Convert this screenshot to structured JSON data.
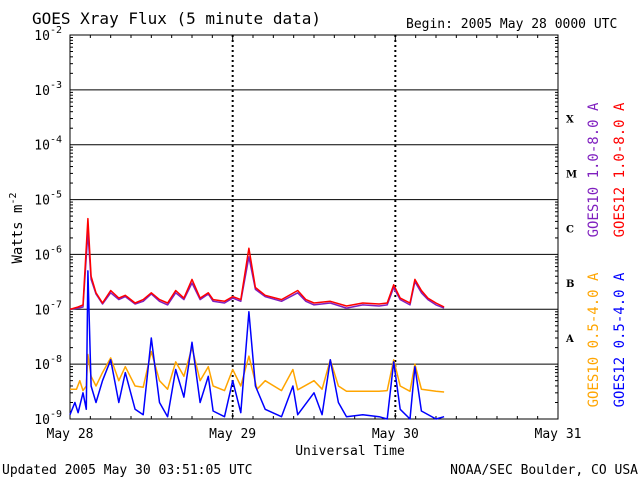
{
  "chart_data": {
    "type": "line",
    "title": "GOES Xray Flux (5 minute data)",
    "begin_label": "Begin:  2005 May 28 0000 UTC",
    "xlabel": "Universal Time",
    "ylabel_base": "Watts m",
    "ylabel_exp": "-2",
    "y_scale": "log",
    "ylim": [
      1e-09,
      0.01
    ],
    "y_ticks": [
      {
        "base": "10",
        "exp": "-2",
        "value": 0.01
      },
      {
        "base": "10",
        "exp": "-3",
        "value": 0.001
      },
      {
        "base": "10",
        "exp": "-4",
        "value": 0.0001
      },
      {
        "base": "10",
        "exp": "-5",
        "value": 1e-05
      },
      {
        "base": "10",
        "exp": "-6",
        "value": 1e-06
      },
      {
        "base": "10",
        "exp": "-7",
        "value": 1e-07
      },
      {
        "base": "10",
        "exp": "-8",
        "value": 1e-08
      },
      {
        "base": "10",
        "exp": "-9",
        "value": 1e-09
      }
    ],
    "xlim_days": [
      0,
      3
    ],
    "x_ticks": [
      {
        "label": "May 28",
        "day": 0
      },
      {
        "label": "May 29",
        "day": 1
      },
      {
        "label": "May 30",
        "day": 2
      },
      {
        "label": "May 31",
        "day": 3
      }
    ],
    "flare_classes": [
      {
        "label": "X",
        "value": 0.0003
      },
      {
        "label": "M",
        "value": 3e-05
      },
      {
        "label": "C",
        "value": 3e-06
      },
      {
        "label": "B",
        "value": 3e-07
      },
      {
        "label": "A",
        "value": 3e-08
      }
    ],
    "grid": "horizontal decade lines, dashed vertical day lines",
    "series": [
      {
        "name": "GOES12 1.0-8.0 A",
        "color": "#ff0000",
        "points": [
          [
            0,
            1e-07
          ],
          [
            0.05,
            1.1e-07
          ],
          [
            0.08,
            1.2e-07
          ],
          [
            0.11,
            4.5e-06
          ],
          [
            0.13,
            4e-07
          ],
          [
            0.16,
            2e-07
          ],
          [
            0.2,
            1.3e-07
          ],
          [
            0.25,
            2.2e-07
          ],
          [
            0.3,
            1.6e-07
          ],
          [
            0.34,
            1.8e-07
          ],
          [
            0.4,
            1.3e-07
          ],
          [
            0.45,
            1.5e-07
          ],
          [
            0.5,
            2e-07
          ],
          [
            0.55,
            1.5e-07
          ],
          [
            0.6,
            1.3e-07
          ],
          [
            0.65,
            2.2e-07
          ],
          [
            0.7,
            1.6e-07
          ],
          [
            0.75,
            3.5e-07
          ],
          [
            0.8,
            1.6e-07
          ],
          [
            0.85,
            2e-07
          ],
          [
            0.88,
            1.5e-07
          ],
          [
            0.95,
            1.4e-07
          ],
          [
            1.0,
            1.7e-07
          ],
          [
            1.05,
            1.5e-07
          ],
          [
            1.1,
            1.3e-06
          ],
          [
            1.14,
            2.5e-07
          ],
          [
            1.2,
            1.8e-07
          ],
          [
            1.3,
            1.5e-07
          ],
          [
            1.4,
            2.2e-07
          ],
          [
            1.45,
            1.5e-07
          ],
          [
            1.5,
            1.3e-07
          ],
          [
            1.6,
            1.4e-07
          ],
          [
            1.7,
            1.15e-07
          ],
          [
            1.8,
            1.3e-07
          ],
          [
            1.9,
            1.25e-07
          ],
          [
            1.95,
            1.3e-07
          ],
          [
            1.99,
            2.8e-07
          ],
          [
            2.03,
            1.6e-07
          ],
          [
            2.09,
            1.3e-07
          ],
          [
            2.12,
            3.5e-07
          ],
          [
            2.16,
            2.2e-07
          ],
          [
            2.2,
            1.6e-07
          ],
          [
            2.25,
            1.3e-07
          ],
          [
            2.3,
            1.1e-07
          ]
        ]
      },
      {
        "name": "GOES10 1.0-8.0 A",
        "color": "#7f1fbf",
        "points": [
          [
            0,
            1e-07
          ],
          [
            0.05,
            1.05e-07
          ],
          [
            0.08,
            1.1e-07
          ],
          [
            0.11,
            2.5e-06
          ],
          [
            0.13,
            3.5e-07
          ],
          [
            0.16,
            1.9e-07
          ],
          [
            0.2,
            1.25e-07
          ],
          [
            0.25,
            2e-07
          ],
          [
            0.3,
            1.5e-07
          ],
          [
            0.34,
            1.7e-07
          ],
          [
            0.4,
            1.25e-07
          ],
          [
            0.45,
            1.4e-07
          ],
          [
            0.5,
            1.9e-07
          ],
          [
            0.55,
            1.4e-07
          ],
          [
            0.6,
            1.2e-07
          ],
          [
            0.65,
            2e-07
          ],
          [
            0.7,
            1.5e-07
          ],
          [
            0.75,
            3e-07
          ],
          [
            0.8,
            1.5e-07
          ],
          [
            0.85,
            1.9e-07
          ],
          [
            0.88,
            1.4e-07
          ],
          [
            0.95,
            1.3e-07
          ],
          [
            1.0,
            1.6e-07
          ],
          [
            1.05,
            1.4e-07
          ],
          [
            1.1,
            9e-07
          ],
          [
            1.14,
            2.3e-07
          ],
          [
            1.2,
            1.7e-07
          ],
          [
            1.3,
            1.4e-07
          ],
          [
            1.4,
            2e-07
          ],
          [
            1.45,
            1.4e-07
          ],
          [
            1.5,
            1.2e-07
          ],
          [
            1.6,
            1.3e-07
          ],
          [
            1.7,
            1.05e-07
          ],
          [
            1.8,
            1.2e-07
          ],
          [
            1.9,
            1.15e-07
          ],
          [
            1.95,
            1.2e-07
          ],
          [
            1.99,
            2.5e-07
          ],
          [
            2.03,
            1.5e-07
          ],
          [
            2.09,
            1.2e-07
          ],
          [
            2.12,
            3.2e-07
          ],
          [
            2.16,
            2e-07
          ],
          [
            2.2,
            1.5e-07
          ],
          [
            2.25,
            1.2e-07
          ],
          [
            2.3,
            1.05e-07
          ]
        ]
      },
      {
        "name": "GOES10 0.5-4.0 A",
        "color": "#ffa500",
        "points": [
          [
            0,
            3.5e-09
          ],
          [
            0.04,
            3.5e-09
          ],
          [
            0.06,
            5e-09
          ],
          [
            0.08,
            3.3e-09
          ],
          [
            0.1,
            4e-09
          ],
          [
            0.11,
            1.5e-08
          ],
          [
            0.13,
            6e-09
          ],
          [
            0.16,
            4e-09
          ],
          [
            0.2,
            7e-09
          ],
          [
            0.25,
            1.3e-08
          ],
          [
            0.3,
            5e-09
          ],
          [
            0.34,
            9e-09
          ],
          [
            0.4,
            4e-09
          ],
          [
            0.45,
            3.8e-09
          ],
          [
            0.5,
            1.7e-08
          ],
          [
            0.55,
            5e-09
          ],
          [
            0.6,
            3.5e-09
          ],
          [
            0.65,
            1.1e-08
          ],
          [
            0.7,
            6e-09
          ],
          [
            0.75,
            2e-08
          ],
          [
            0.8,
            5e-09
          ],
          [
            0.85,
            9e-09
          ],
          [
            0.88,
            4e-09
          ],
          [
            0.95,
            3.3e-09
          ],
          [
            1.0,
            8e-09
          ],
          [
            1.05,
            4e-09
          ],
          [
            1.1,
            1.4e-08
          ],
          [
            1.15,
            3.5e-09
          ],
          [
            1.2,
            5e-09
          ],
          [
            1.3,
            3.3e-09
          ],
          [
            1.37,
            8e-09
          ],
          [
            1.4,
            3.4e-09
          ],
          [
            1.5,
            5e-09
          ],
          [
            1.55,
            3.5e-09
          ],
          [
            1.6,
            1.2e-08
          ],
          [
            1.65,
            4e-09
          ],
          [
            1.7,
            3.2e-09
          ],
          [
            1.8,
            3.2e-09
          ],
          [
            1.9,
            3.2e-09
          ],
          [
            1.95,
            3.3e-09
          ],
          [
            1.99,
            1.2e-08
          ],
          [
            2.03,
            4e-09
          ],
          [
            2.09,
            3.2e-09
          ],
          [
            2.12,
            1e-08
          ],
          [
            2.16,
            3.5e-09
          ],
          [
            2.25,
            3.2e-09
          ],
          [
            2.3,
            3.1e-09
          ]
        ]
      },
      {
        "name": "GOES12 0.5-4.0 A",
        "color": "#0000ff",
        "points": [
          [
            0,
            1.2e-09
          ],
          [
            0.03,
            2e-09
          ],
          [
            0.05,
            1.3e-09
          ],
          [
            0.08,
            3e-09
          ],
          [
            0.1,
            1.5e-09
          ],
          [
            0.11,
            5e-07
          ],
          [
            0.13,
            4e-09
          ],
          [
            0.16,
            2e-09
          ],
          [
            0.2,
            5e-09
          ],
          [
            0.25,
            1.2e-08
          ],
          [
            0.3,
            2e-09
          ],
          [
            0.34,
            7e-09
          ],
          [
            0.4,
            1.5e-09
          ],
          [
            0.45,
            1.2e-09
          ],
          [
            0.5,
            3e-08
          ],
          [
            0.55,
            2e-09
          ],
          [
            0.6,
            1.1e-09
          ],
          [
            0.65,
            8e-09
          ],
          [
            0.7,
            2.5e-09
          ],
          [
            0.75,
            2.5e-08
          ],
          [
            0.8,
            2e-09
          ],
          [
            0.85,
            6e-09
          ],
          [
            0.88,
            1.4e-09
          ],
          [
            0.95,
            1.1e-09
          ],
          [
            1.0,
            5e-09
          ],
          [
            1.05,
            1.3e-09
          ],
          [
            1.1,
            9e-08
          ],
          [
            1.14,
            4e-09
          ],
          [
            1.2,
            1.5e-09
          ],
          [
            1.3,
            1.1e-09
          ],
          [
            1.37,
            4e-09
          ],
          [
            1.4,
            1.2e-09
          ],
          [
            1.5,
            3e-09
          ],
          [
            1.55,
            1.2e-09
          ],
          [
            1.6,
            1.2e-08
          ],
          [
            1.65,
            2e-09
          ],
          [
            1.7,
            1.1e-09
          ],
          [
            1.8,
            1.2e-09
          ],
          [
            1.9,
            1.1e-09
          ],
          [
            1.95,
            1e-09
          ],
          [
            1.99,
            1.1e-08
          ],
          [
            2.03,
            1.5e-09
          ],
          [
            2.09,
            1e-09
          ],
          [
            2.12,
            9e-09
          ],
          [
            2.16,
            1.4e-09
          ],
          [
            2.25,
            1e-09
          ],
          [
            2.3,
            1.1e-09
          ]
        ]
      }
    ]
  },
  "footer": {
    "updated": "Updated 2005 May 30 03:51:05 UTC",
    "credit": "NOAA/SEC Boulder, CO USA"
  }
}
